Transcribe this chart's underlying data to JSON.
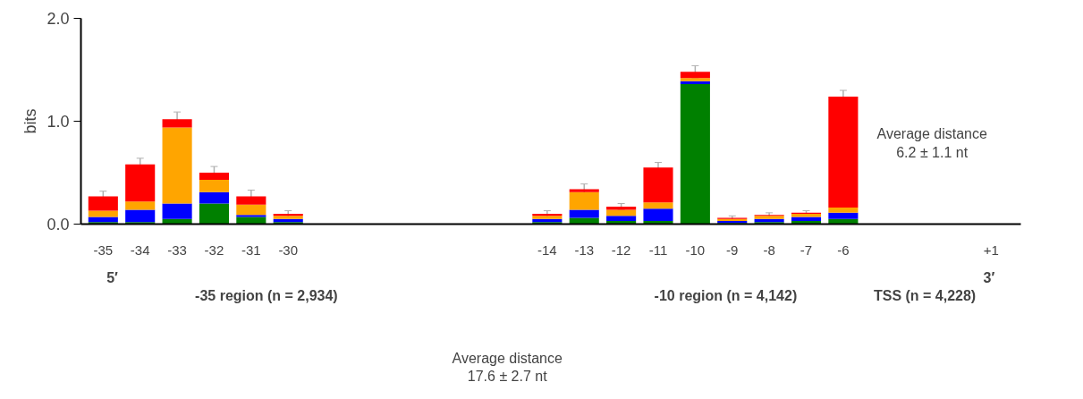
{
  "chart_data": {
    "type": "bar",
    "stacked": true,
    "ylabel": "bits",
    "ylim": [
      0,
      2
    ],
    "yticks": [
      {
        "value": 0,
        "label": "0.0"
      },
      {
        "value": 1,
        "label": "1.0"
      },
      {
        "value": 2,
        "label": "2.0"
      }
    ],
    "grid": false,
    "categories": [
      "-35",
      "-34",
      "-33",
      "-32",
      "-31",
      "-30",
      null,
      null,
      null,
      null,
      null,
      null,
      "-14",
      "-13",
      "-12",
      "-11",
      "-10",
      "-9",
      "-8",
      "-7",
      "-6",
      null,
      null,
      null,
      "+1"
    ],
    "series": [
      {
        "color": "#008000",
        "values": [
          0.02,
          0.02,
          0.05,
          0.2,
          0.07,
          0.02,
          null,
          null,
          null,
          null,
          null,
          null,
          0.02,
          0.06,
          0.03,
          0.03,
          1.36,
          0.01,
          0.02,
          0.03,
          0.05,
          null,
          null,
          null,
          null
        ]
      },
      {
        "color": "#0000ff",
        "values": [
          0.05,
          0.12,
          0.15,
          0.11,
          0.02,
          0.03,
          null,
          null,
          null,
          null,
          null,
          null,
          0.03,
          0.08,
          0.05,
          0.12,
          0.03,
          0.02,
          0.03,
          0.04,
          0.06,
          null,
          null,
          null,
          null
        ]
      },
      {
        "color": "#ffa500",
        "values": [
          0.06,
          0.08,
          0.74,
          0.12,
          0.1,
          0.03,
          null,
          null,
          null,
          null,
          null,
          null,
          0.03,
          0.17,
          0.06,
          0.06,
          0.03,
          0.02,
          0.03,
          0.03,
          0.05,
          null,
          null,
          null,
          null
        ]
      },
      {
        "color": "#ff0000",
        "values": [
          0.14,
          0.36,
          0.08,
          0.07,
          0.08,
          0.02,
          null,
          null,
          null,
          null,
          null,
          null,
          0.02,
          0.03,
          0.03,
          0.34,
          0.06,
          0.01,
          0.01,
          0.01,
          1.08,
          null,
          null,
          null,
          null
        ],
        "errors": [
          0.05,
          0.06,
          0.07,
          0.06,
          0.06,
          0.03,
          null,
          null,
          null,
          null,
          null,
          null,
          0.03,
          0.05,
          0.03,
          0.05,
          0.06,
          0.02,
          0.02,
          0.02,
          0.06,
          null,
          null,
          null,
          null
        ]
      }
    ],
    "annotations": [
      "5′",
      "3′",
      "-35 region (n = 2,934)",
      "-10 region (n = 4,142)",
      "TSS (n = 4,228)",
      "Average distance\n17.6 ± 2.7 nt",
      "Average distance\n6.2 ± 1.1 nt"
    ]
  }
}
